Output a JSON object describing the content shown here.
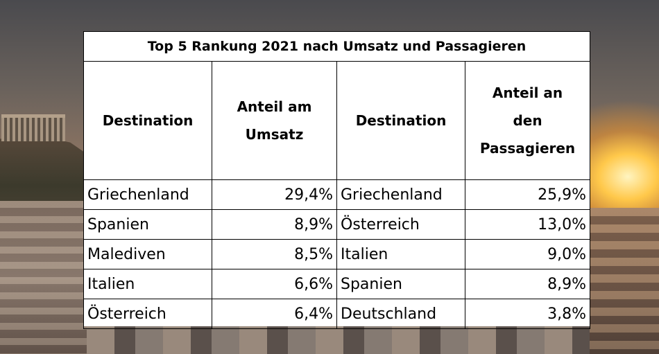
{
  "table": {
    "title": "Top 5 Rankung 2021 nach Umsatz und Passagieren",
    "headers": {
      "dest_left": "Destination",
      "revenue_share_line1": "Anteil am",
      "revenue_share_line2": "Umsatz",
      "dest_right": "Destination",
      "passenger_share_line1": "Anteil an",
      "passenger_share_line2": "den",
      "passenger_share_line3": "Passagieren"
    },
    "rows": [
      {
        "dest_revenue": "Griechenland",
        "revenue_share": "29,4%",
        "dest_passengers": "Griechenland",
        "passenger_share": "25,9%"
      },
      {
        "dest_revenue": "Spanien",
        "revenue_share": "8,9%",
        "dest_passengers": "Österreich",
        "passenger_share": "13,0%"
      },
      {
        "dest_revenue": "Malediven",
        "revenue_share": "8,5%",
        "dest_passengers": "Italien",
        "passenger_share": "9,0%"
      },
      {
        "dest_revenue": "Italien",
        "revenue_share": "6,6%",
        "dest_passengers": "Spanien",
        "passenger_share": "8,9%"
      },
      {
        "dest_revenue": "Österreich",
        "revenue_share": "6,4%",
        "dest_passengers": "Deutschland",
        "passenger_share": "3,8%"
      }
    ]
  },
  "colors": {
    "table_background": "#ffffff",
    "text": "#000000",
    "border": "#000000"
  }
}
